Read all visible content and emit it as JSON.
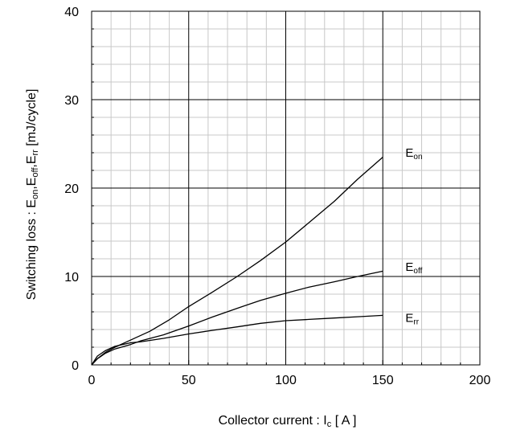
{
  "chart_data": {
    "type": "line",
    "title": "",
    "xlabel": {
      "parts": [
        {
          "text": "Collector current : I",
          "sub": false
        },
        {
          "text": "c",
          "sub": true
        },
        {
          "text": " [ A ]",
          "sub": false
        }
      ]
    },
    "ylabel": {
      "parts": [
        {
          "text": "Switching loss : E",
          "sub": false
        },
        {
          "text": "on",
          "sub": true
        },
        {
          "text": ",E",
          "sub": false
        },
        {
          "text": "off",
          "sub": true
        },
        {
          "text": ",E",
          "sub": false
        },
        {
          "text": "rr",
          "sub": true
        },
        {
          "text": " [mJ/cycle]",
          "sub": false
        }
      ]
    },
    "xlim": [
      0,
      200
    ],
    "ylim": [
      0,
      40
    ],
    "x_ticks": [
      0,
      50,
      100,
      150,
      200
    ],
    "y_ticks": [
      0,
      10,
      20,
      30,
      40
    ],
    "x_tick_labels": [
      "0",
      "50",
      "100",
      "150",
      "200"
    ],
    "y_tick_labels": [
      "0",
      "10",
      "20",
      "30",
      "40"
    ],
    "x_minor_step": 10,
    "y_minor_step": 2,
    "grid": true,
    "series": [
      {
        "key": "Eon",
        "label_main": "E",
        "label_sub": "on",
        "label_at": [
          160,
          24
        ],
        "x": [
          0,
          3,
          7,
          12,
          20,
          30,
          40,
          50,
          62,
          75,
          87,
          100,
          112,
          125,
          137,
          150
        ],
        "y": [
          0,
          0.7,
          1.4,
          2.0,
          2.8,
          3.8,
          5.1,
          6.6,
          8.2,
          10.0,
          11.8,
          13.9,
          16.1,
          18.5,
          21.0,
          23.5
        ]
      },
      {
        "key": "Eoff",
        "label_main": "E",
        "label_sub": "off",
        "label_at": [
          160,
          11.1
        ],
        "x": [
          0,
          3,
          7,
          12,
          20,
          25,
          37,
          50,
          62,
          75,
          87,
          100,
          112,
          125,
          137,
          150
        ],
        "y": [
          0,
          0.7,
          1.3,
          1.8,
          2.3,
          2.7,
          3.4,
          4.4,
          5.4,
          6.4,
          7.3,
          8.1,
          8.8,
          9.4,
          10.0,
          10.6
        ]
      },
      {
        "key": "Err",
        "label_main": "E",
        "label_sub": "rr",
        "label_at": [
          160,
          5.3
        ],
        "x": [
          0,
          3,
          7,
          12,
          20,
          25,
          37,
          50,
          62,
          75,
          87,
          100,
          112,
          125,
          137,
          150
        ],
        "y": [
          0,
          1.0,
          1.6,
          2.1,
          2.5,
          2.6,
          3.0,
          3.5,
          3.9,
          4.3,
          4.7,
          5.0,
          5.15,
          5.3,
          5.45,
          5.6
        ]
      }
    ]
  }
}
